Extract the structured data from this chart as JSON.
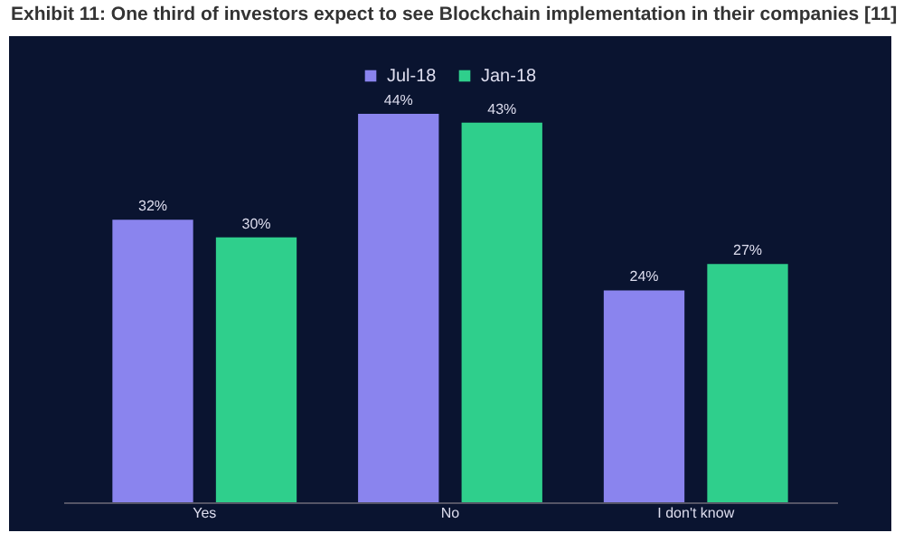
{
  "chart_data": {
    "type": "bar",
    "title": "Exhibit 11: One third of investors expect to see Blockchain implementation in their companies [11]",
    "categories": [
      "Yes",
      "No",
      "I don't know"
    ],
    "series": [
      {
        "name": "Jul-18",
        "color": "#8a84ee",
        "values": [
          32,
          44,
          24
        ],
        "value_labels": [
          "32%",
          "44%",
          "24%"
        ]
      },
      {
        "name": "Jan-18",
        "color": "#2fcf8c",
        "values": [
          30,
          43,
          27
        ],
        "value_labels": [
          "30%",
          "43%",
          "27%"
        ]
      }
    ],
    "legend": "top"
  }
}
